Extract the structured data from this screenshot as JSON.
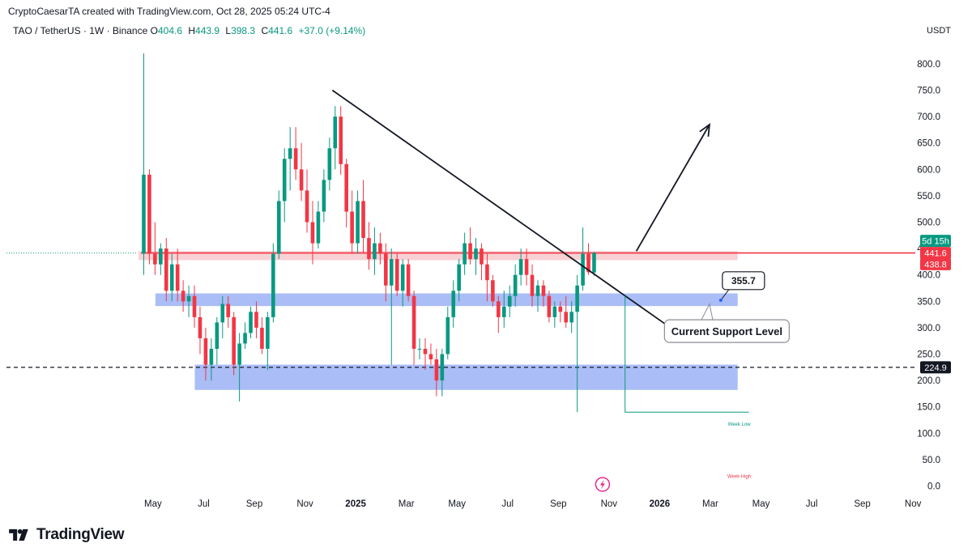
{
  "header": {
    "credit": "CryptoCaesarTA created with TradingView.com, Oct 28, 2025 05:24 UTC-4",
    "symbol": "TAO / TetherUS · 1W · Binance",
    "open_label": "O",
    "open": "404.6",
    "high_label": "H",
    "high": "443.9",
    "low_label": "L",
    "low": "398.3",
    "close_label": "C",
    "close": "441.6",
    "change": "+37.0 (+9.14%)",
    "currency": "USDT"
  },
  "footer": {
    "brand": "TradingView"
  },
  "chart_data": {
    "type": "candlestick",
    "title": "TAO / TetherUS · 1W · Binance",
    "ylabel": "USDT",
    "ylim": [
      -10,
      850
    ],
    "y_ticks": [
      0,
      50,
      100,
      150,
      200,
      250,
      300,
      350,
      400,
      450,
      500,
      550,
      600,
      650,
      700,
      750,
      800
    ],
    "y_tick_labels": [
      "0.0",
      "50.0",
      "100.0",
      "150.0",
      "200.0",
      "250.0",
      "300.0",
      "350.0",
      "400.0",
      "450.0",
      "500.0",
      "550.0",
      "600.0",
      "650.0",
      "700.0",
      "750.0",
      "800.0"
    ],
    "x_labels": [
      {
        "week": 2,
        "label": "May",
        "bold": false
      },
      {
        "week": 11,
        "label": "Jul",
        "bold": false
      },
      {
        "week": 20,
        "label": "Sep",
        "bold": false
      },
      {
        "week": 29,
        "label": "Nov",
        "bold": false
      },
      {
        "week": 38,
        "label": "2025",
        "bold": true
      },
      {
        "week": 47,
        "label": "Mar",
        "bold": false
      },
      {
        "week": 56,
        "label": "May",
        "bold": false
      },
      {
        "week": 65,
        "label": "Jul",
        "bold": false
      },
      {
        "week": 74,
        "label": "Sep",
        "bold": false
      },
      {
        "week": 83,
        "label": "Nov",
        "bold": false
      },
      {
        "week": 92,
        "label": "2026",
        "bold": true
      },
      {
        "week": 101,
        "label": "Mar",
        "bold": false
      },
      {
        "week": 110,
        "label": "May",
        "bold": false
      },
      {
        "week": 119,
        "label": "Jul",
        "bold": false
      },
      {
        "week": 128,
        "label": "Sep",
        "bold": false
      },
      {
        "week": 137,
        "label": "Nov",
        "bold": false
      }
    ],
    "candles": [
      {
        "o": 440,
        "h": 820,
        "l": 400,
        "c": 590
      },
      {
        "o": 590,
        "h": 600,
        "l": 420,
        "c": 440
      },
      {
        "o": 440,
        "h": 500,
        "l": 400,
        "c": 420
      },
      {
        "o": 420,
        "h": 460,
        "l": 400,
        "c": 450
      },
      {
        "o": 450,
        "h": 470,
        "l": 350,
        "c": 370
      },
      {
        "o": 370,
        "h": 440,
        "l": 350,
        "c": 420
      },
      {
        "o": 420,
        "h": 450,
        "l": 350,
        "c": 370
      },
      {
        "o": 370,
        "h": 390,
        "l": 330,
        "c": 350
      },
      {
        "o": 350,
        "h": 380,
        "l": 320,
        "c": 360
      },
      {
        "o": 360,
        "h": 380,
        "l": 300,
        "c": 320
      },
      {
        "o": 320,
        "h": 340,
        "l": 250,
        "c": 280
      },
      {
        "o": 280,
        "h": 300,
        "l": 200,
        "c": 230
      },
      {
        "o": 230,
        "h": 280,
        "l": 200,
        "c": 260
      },
      {
        "o": 260,
        "h": 320,
        "l": 230,
        "c": 310
      },
      {
        "o": 310,
        "h": 360,
        "l": 280,
        "c": 345
      },
      {
        "o": 345,
        "h": 360,
        "l": 300,
        "c": 320
      },
      {
        "o": 320,
        "h": 330,
        "l": 210,
        "c": 230
      },
      {
        "o": 230,
        "h": 290,
        "l": 160,
        "c": 270
      },
      {
        "o": 270,
        "h": 310,
        "l": 260,
        "c": 290
      },
      {
        "o": 290,
        "h": 340,
        "l": 280,
        "c": 330
      },
      {
        "o": 330,
        "h": 350,
        "l": 280,
        "c": 300
      },
      {
        "o": 300,
        "h": 320,
        "l": 250,
        "c": 260
      },
      {
        "o": 260,
        "h": 330,
        "l": 220,
        "c": 320
      },
      {
        "o": 320,
        "h": 460,
        "l": 310,
        "c": 440
      },
      {
        "o": 440,
        "h": 560,
        "l": 430,
        "c": 540
      },
      {
        "o": 540,
        "h": 640,
        "l": 500,
        "c": 620
      },
      {
        "o": 620,
        "h": 680,
        "l": 560,
        "c": 640
      },
      {
        "o": 640,
        "h": 680,
        "l": 580,
        "c": 600
      },
      {
        "o": 600,
        "h": 650,
        "l": 540,
        "c": 560
      },
      {
        "o": 560,
        "h": 600,
        "l": 480,
        "c": 500
      },
      {
        "o": 500,
        "h": 540,
        "l": 420,
        "c": 460
      },
      {
        "o": 460,
        "h": 540,
        "l": 450,
        "c": 520
      },
      {
        "o": 520,
        "h": 600,
        "l": 500,
        "c": 580
      },
      {
        "o": 580,
        "h": 660,
        "l": 560,
        "c": 640
      },
      {
        "o": 640,
        "h": 720,
        "l": 600,
        "c": 700
      },
      {
        "o": 700,
        "h": 720,
        "l": 590,
        "c": 610
      },
      {
        "o": 610,
        "h": 620,
        "l": 490,
        "c": 520
      },
      {
        "o": 520,
        "h": 560,
        "l": 440,
        "c": 460
      },
      {
        "o": 460,
        "h": 560,
        "l": 440,
        "c": 540
      },
      {
        "o": 540,
        "h": 580,
        "l": 440,
        "c": 470
      },
      {
        "o": 470,
        "h": 500,
        "l": 410,
        "c": 430
      },
      {
        "o": 430,
        "h": 490,
        "l": 400,
        "c": 460
      },
      {
        "o": 460,
        "h": 480,
        "l": 420,
        "c": 440
      },
      {
        "o": 440,
        "h": 460,
        "l": 350,
        "c": 380
      },
      {
        "o": 380,
        "h": 450,
        "l": 230,
        "c": 430
      },
      {
        "o": 430,
        "h": 440,
        "l": 360,
        "c": 370
      },
      {
        "o": 370,
        "h": 430,
        "l": 340,
        "c": 420
      },
      {
        "o": 420,
        "h": 430,
        "l": 350,
        "c": 360
      },
      {
        "o": 360,
        "h": 370,
        "l": 230,
        "c": 260
      },
      {
        "o": 260,
        "h": 280,
        "l": 240,
        "c": 260
      },
      {
        "o": 260,
        "h": 280,
        "l": 220,
        "c": 250
      },
      {
        "o": 250,
        "h": 270,
        "l": 230,
        "c": 240
      },
      {
        "o": 240,
        "h": 260,
        "l": 170,
        "c": 200
      },
      {
        "o": 200,
        "h": 260,
        "l": 170,
        "c": 250
      },
      {
        "o": 250,
        "h": 340,
        "l": 240,
        "c": 320
      },
      {
        "o": 320,
        "h": 390,
        "l": 300,
        "c": 370
      },
      {
        "o": 370,
        "h": 430,
        "l": 350,
        "c": 420
      },
      {
        "o": 420,
        "h": 480,
        "l": 400,
        "c": 460
      },
      {
        "o": 460,
        "h": 490,
        "l": 420,
        "c": 430
      },
      {
        "o": 430,
        "h": 470,
        "l": 400,
        "c": 450
      },
      {
        "o": 450,
        "h": 460,
        "l": 390,
        "c": 420
      },
      {
        "o": 420,
        "h": 440,
        "l": 350,
        "c": 390
      },
      {
        "o": 390,
        "h": 400,
        "l": 340,
        "c": 350
      },
      {
        "o": 350,
        "h": 360,
        "l": 290,
        "c": 320
      },
      {
        "o": 320,
        "h": 370,
        "l": 300,
        "c": 340
      },
      {
        "o": 340,
        "h": 380,
        "l": 320,
        "c": 360
      },
      {
        "o": 360,
        "h": 420,
        "l": 340,
        "c": 400
      },
      {
        "o": 400,
        "h": 450,
        "l": 380,
        "c": 430
      },
      {
        "o": 430,
        "h": 450,
        "l": 380,
        "c": 400
      },
      {
        "o": 400,
        "h": 420,
        "l": 340,
        "c": 360
      },
      {
        "o": 360,
        "h": 390,
        "l": 330,
        "c": 380
      },
      {
        "o": 380,
        "h": 390,
        "l": 340,
        "c": 360
      },
      {
        "o": 360,
        "h": 370,
        "l": 310,
        "c": 320
      },
      {
        "o": 320,
        "h": 350,
        "l": 300,
        "c": 340
      },
      {
        "o": 340,
        "h": 350,
        "l": 310,
        "c": 330
      },
      {
        "o": 330,
        "h": 360,
        "l": 300,
        "c": 310
      },
      {
        "o": 310,
        "h": 350,
        "l": 290,
        "c": 330
      },
      {
        "o": 330,
        "h": 400,
        "l": 140,
        "c": 380
      },
      {
        "o": 380,
        "h": 490,
        "l": 370,
        "c": 440
      },
      {
        "o": 440,
        "h": 460,
        "l": 400,
        "c": 405
      },
      {
        "o": 404.6,
        "h": 443.9,
        "l": 398.3,
        "c": 441.6
      }
    ],
    "zones": [
      {
        "name": "resistance",
        "from_week": 0,
        "to_week": 106,
        "low": 428,
        "high": 445,
        "color": "#f7c9cc"
      },
      {
        "name": "support",
        "from_week": 3,
        "to_week": 106,
        "low": 341,
        "high": 365,
        "color": "#9bb2f5"
      },
      {
        "name": "lower-support",
        "from_week": 10,
        "to_week": 106,
        "low": 182,
        "high": 230,
        "color": "#9bb2f5"
      }
    ],
    "horizontal_lines": [
      {
        "name": "price-line",
        "value": 441.6,
        "color": "#f23645",
        "style": "solid"
      },
      {
        "name": "dashed-level",
        "value": 224.9,
        "color": "#131722",
        "style": "dashed"
      }
    ],
    "trendlines": [
      {
        "name": "downtrend-line",
        "from": {
          "week": 34,
          "value": 750
        },
        "to": {
          "week": 93,
          "value": 308
        }
      },
      {
        "name": "projection-arrow",
        "from": {
          "week": 88,
          "value": 445
        },
        "to": {
          "week": 101,
          "value": 685
        }
      }
    ],
    "week_low": {
      "label": "Week Low",
      "value": 140,
      "from_week": 86,
      "to_week": 108
    },
    "week_high": {
      "label": "Week High",
      "value": 15
    },
    "annotations": {
      "support_value": "355.7",
      "support_label": "Current Support Level"
    },
    "price_tags": {
      "countdown": "5d 15h",
      "close": "441.6",
      "open": "438.8",
      "level": "224.9"
    },
    "colors": {
      "up": "#089981",
      "down": "#f23645"
    }
  }
}
